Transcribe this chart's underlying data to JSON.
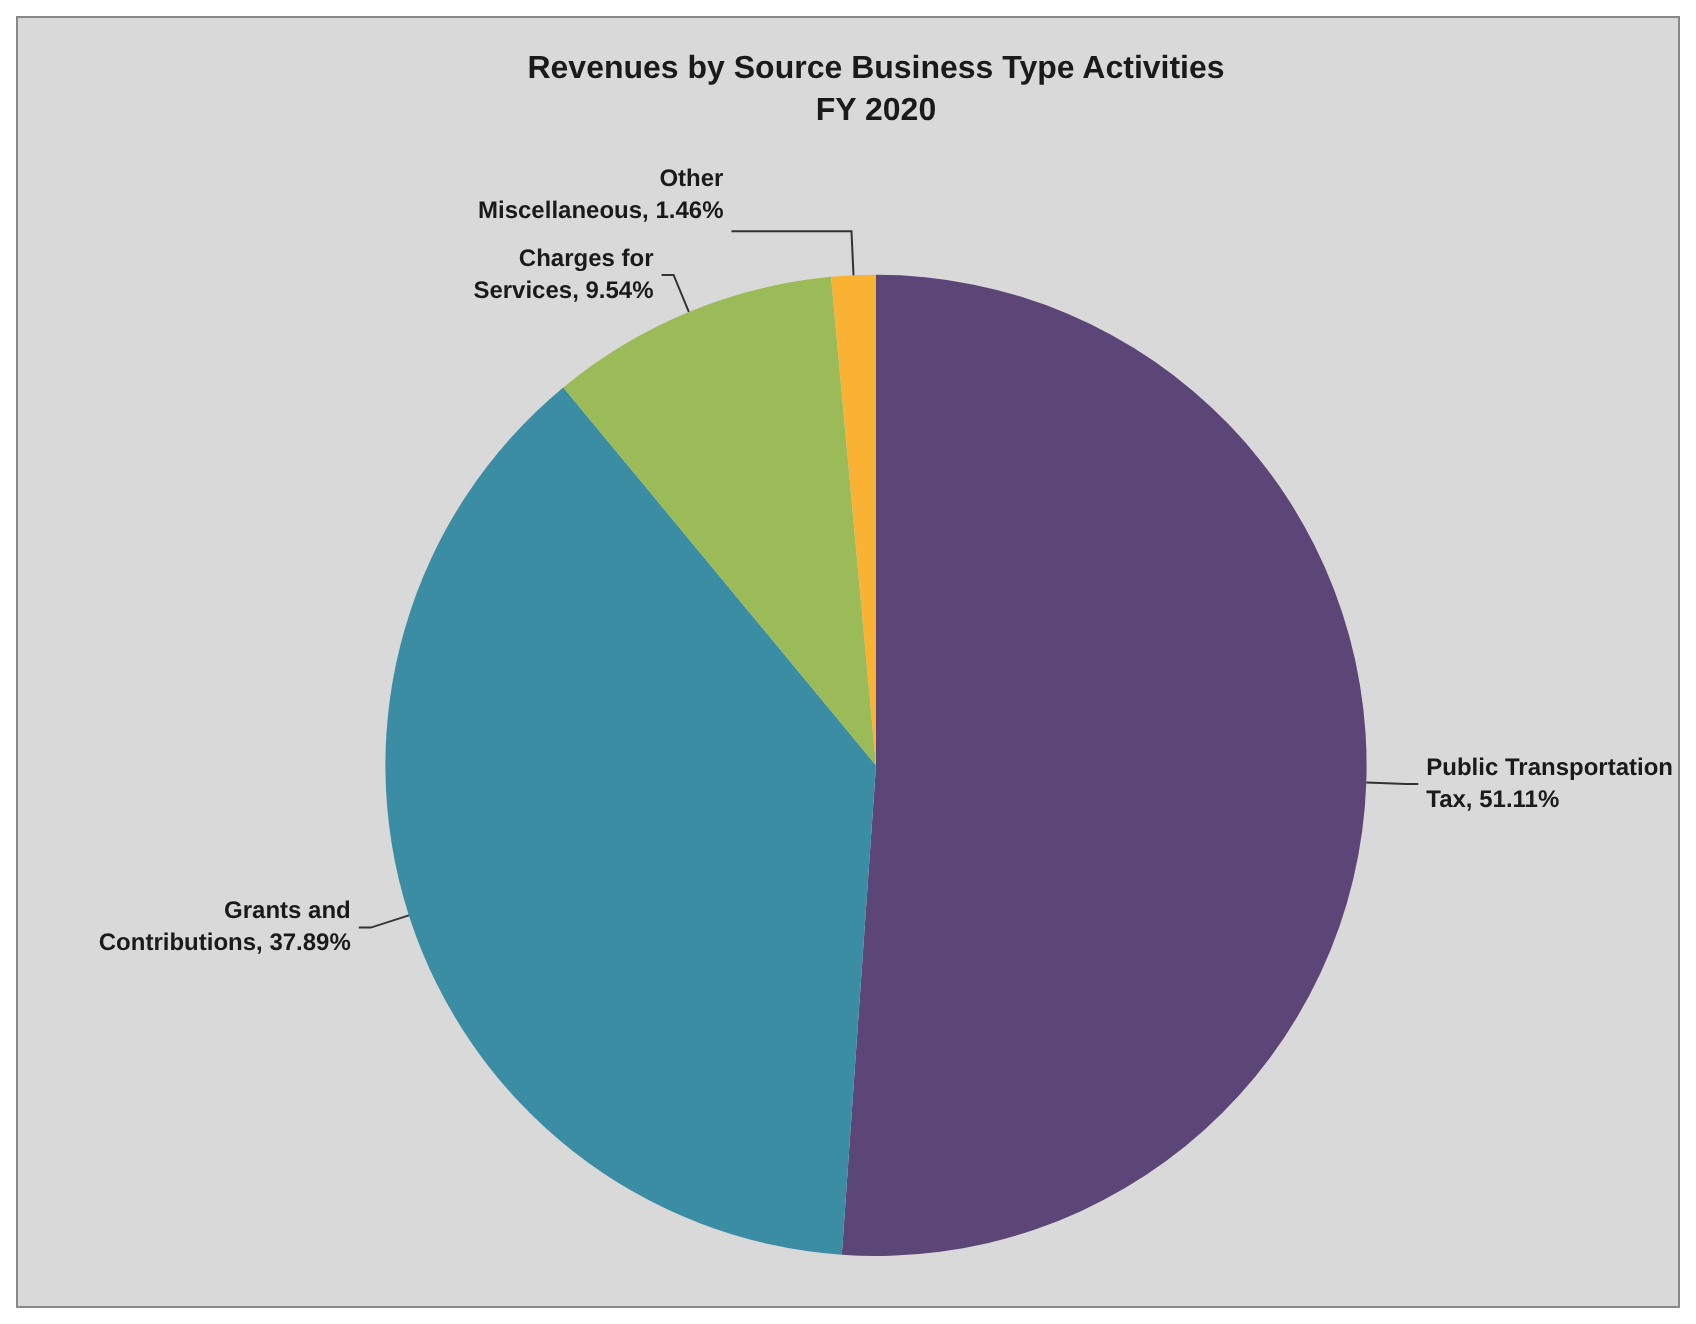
{
  "chart_data": {
    "type": "pie",
    "title": "Revenues by Source Business Type Activities",
    "subtitle": "FY 2020",
    "categories": [
      "Public Transportation Tax",
      "Grants and Contributions",
      "Charges for Services",
      "Other Miscellaneous"
    ],
    "values": [
      51.11,
      37.89,
      9.54,
      1.46
    ],
    "colors": [
      "#5c4678",
      "#3a8da2",
      "#9bbb59",
      "#f9b233"
    ],
    "value_labels": [
      "51.11%",
      "37.89%",
      "9.54%",
      "1.46%"
    ],
    "legend": false
  }
}
